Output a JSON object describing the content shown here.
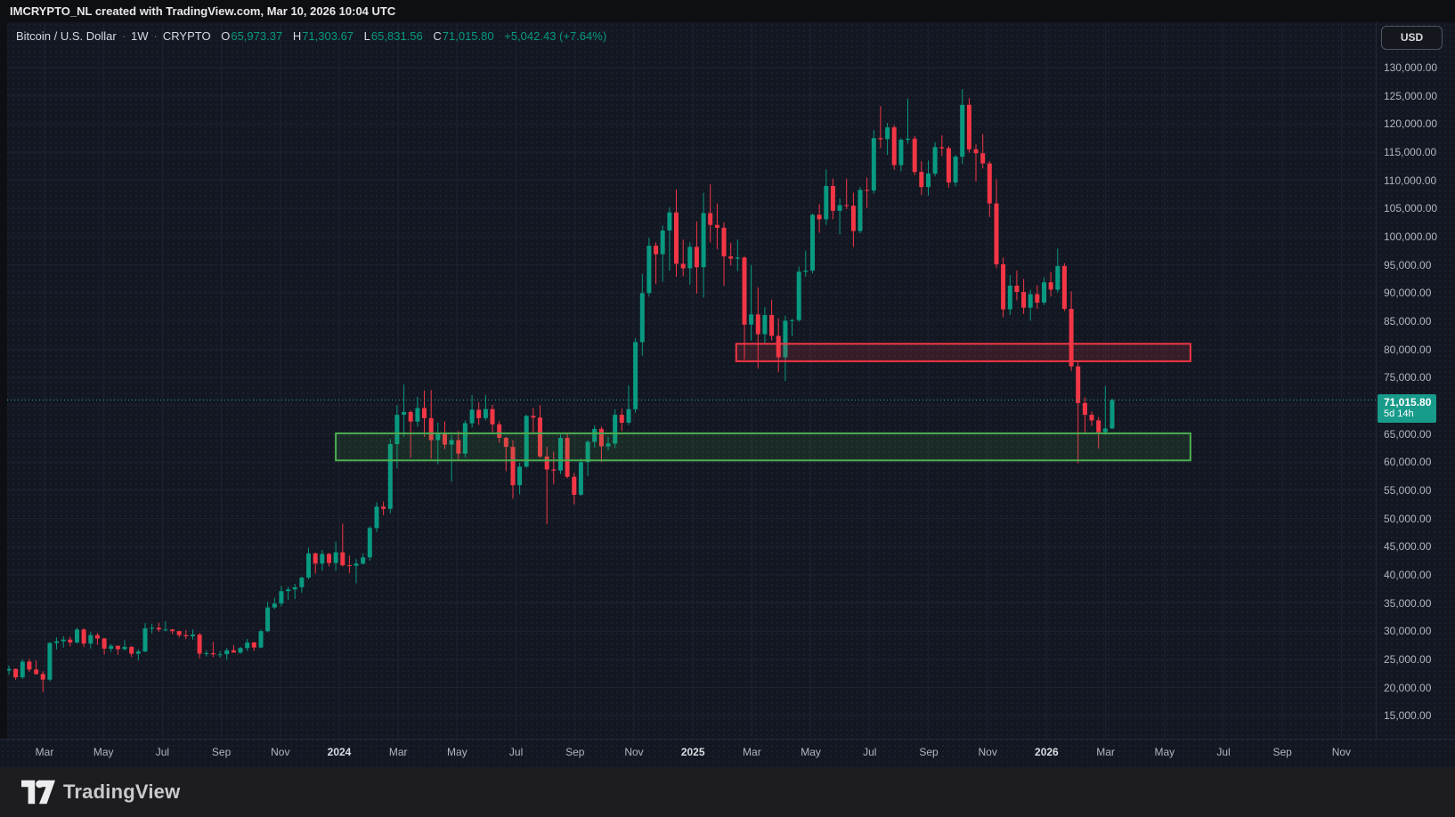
{
  "attribution": {
    "text": "IMCRYPTO_NL created with TradingView.com, Mar 10, 2026 10:04 UTC"
  },
  "header": {
    "symbol": "Bitcoin / U.S. Dollar",
    "separator": "·",
    "interval": "1W",
    "exchange": "CRYPTO",
    "ohlc": {
      "o_label": "O",
      "o": "65,973.37",
      "h_label": "H",
      "h": "71,303.67",
      "l_label": "L",
      "l": "65,831.56",
      "c_label": "C",
      "c": "71,015.80"
    },
    "change": "+5,042.43 (+7.64%)"
  },
  "price_axis": {
    "currency_button": "USD",
    "max": 130000,
    "min": 15000,
    "step": 5000,
    "labels": [
      "130,000.00",
      "125,000.00",
      "120,000.00",
      "115,000.00",
      "110,000.00",
      "105,000.00",
      "100,000.00",
      "95,000.00",
      "90,000.00",
      "85,000.00",
      "80,000.00",
      "75,000.00",
      "70,000.00",
      "65,000.00",
      "60,000.00",
      "55,000.00",
      "50,000.00",
      "45,000.00",
      "40,000.00",
      "35,000.00",
      "30,000.00",
      "25,000.00",
      "20,000.00",
      "15,000.00"
    ]
  },
  "time_axis": {
    "labels": [
      {
        "t": "Mar",
        "major": false
      },
      {
        "t": "May",
        "major": false
      },
      {
        "t": "Jul",
        "major": false
      },
      {
        "t": "Sep",
        "major": false
      },
      {
        "t": "Nov",
        "major": false
      },
      {
        "t": "2024",
        "major": true
      },
      {
        "t": "Mar",
        "major": false
      },
      {
        "t": "May",
        "major": false
      },
      {
        "t": "Jul",
        "major": false
      },
      {
        "t": "Sep",
        "major": false
      },
      {
        "t": "Nov",
        "major": false
      },
      {
        "t": "2025",
        "major": true
      },
      {
        "t": "Mar",
        "major": false
      },
      {
        "t": "May",
        "major": false
      },
      {
        "t": "Jul",
        "major": false
      },
      {
        "t": "Sep",
        "major": false
      },
      {
        "t": "Nov",
        "major": false
      },
      {
        "t": "2026",
        "major": true
      },
      {
        "t": "Mar",
        "major": false
      },
      {
        "t": "May",
        "major": false
      },
      {
        "t": "Jul",
        "major": false
      },
      {
        "t": "Sep",
        "major": false
      },
      {
        "t": "Nov",
        "major": false
      }
    ]
  },
  "current_price": {
    "value": "71,015.80",
    "price": 71015.8,
    "countdown": "5d 14h"
  },
  "footer": {
    "brand": "TradingView"
  },
  "colors": {
    "up": "#089981",
    "down": "#f23645",
    "bg": "#131722",
    "panel": "#0e0f12",
    "footerbg": "#1d1d20",
    "grid": "#1d2231",
    "axisline": "#242836",
    "axistext": "#b2b5be",
    "title": "#d6d8dd",
    "tagbg": "#189b8b",
    "dotted_line": "#26a69a",
    "zone_red_border": "#f23645",
    "zone_red_fill": "rgba(242,54,69,0.16)",
    "zone_green_border": "#4caf50",
    "zone_green_fill": "rgba(76,175,80,0.13)"
  },
  "zones": [
    {
      "name": "resistance-supply-zone",
      "top_price": 81000,
      "bottom_price": 77900,
      "start_index": 106.8,
      "end_index": 173.5,
      "border": "#f23645",
      "fill": "rgba(242,54,69,0.16)"
    },
    {
      "name": "support-demand-zone",
      "top_price": 65100,
      "bottom_price": 60300,
      "start_index": 48,
      "end_index": 173.5,
      "border": "#4caf50",
      "fill": "rgba(76,175,80,0.13)"
    }
  ],
  "chart_data": {
    "type": "candlestick",
    "title": "Bitcoin / U.S. Dollar",
    "symbol": "BTCUSD",
    "exchange": "CRYPTO",
    "interval": "1W",
    "unit": "USD",
    "start_date": "2023-01-30",
    "ylim": [
      15000,
      130000
    ],
    "grid": true,
    "current_close": 71015.8,
    "bar_countdown": "5d 14h",
    "candles_ohlc": [
      [
        23000,
        23900,
        22300,
        23300
      ],
      [
        23300,
        23400,
        21400,
        21800
      ],
      [
        21800,
        25000,
        21500,
        24600
      ],
      [
        24600,
        25100,
        22800,
        23200
      ],
      [
        23200,
        24800,
        22300,
        22400
      ],
      [
        22400,
        22900,
        19200,
        21400
      ],
      [
        21400,
        28100,
        21100,
        27900
      ],
      [
        27900,
        28900,
        26800,
        28200
      ],
      [
        28200,
        29100,
        27100,
        28500
      ],
      [
        28500,
        29000,
        27300,
        28000
      ],
      [
        28000,
        30600,
        27800,
        30300
      ],
      [
        30300,
        30500,
        27200,
        27800
      ],
      [
        27800,
        29900,
        26900,
        29300
      ],
      [
        29300,
        29700,
        27600,
        28700
      ],
      [
        28700,
        28800,
        25900,
        26900
      ],
      [
        26900,
        27700,
        26300,
        27400
      ],
      [
        27400,
        27500,
        25800,
        26800
      ],
      [
        26800,
        28400,
        26600,
        27200
      ],
      [
        27200,
        27400,
        25400,
        26000
      ],
      [
        26000,
        26800,
        24800,
        26400
      ],
      [
        26400,
        31400,
        26300,
        30500
      ],
      [
        30500,
        31300,
        29600,
        30600
      ],
      [
        30600,
        31500,
        29900,
        30300
      ],
      [
        30300,
        31800,
        30000,
        30300
      ],
      [
        30300,
        30400,
        29500,
        30000
      ],
      [
        30000,
        30100,
        28900,
        29300
      ],
      [
        29300,
        30200,
        28600,
        29100
      ],
      [
        29100,
        30300,
        28500,
        29400
      ],
      [
        29400,
        29700,
        25200,
        26000
      ],
      [
        26000,
        26600,
        25500,
        26100
      ],
      [
        26100,
        28100,
        25400,
        25900
      ],
      [
        25900,
        26500,
        25300,
        25900
      ],
      [
        25900,
        27000,
        24900,
        26600
      ],
      [
        26600,
        27500,
        26200,
        26200
      ],
      [
        26200,
        27200,
        26000,
        27000
      ],
      [
        27000,
        28600,
        26500,
        28000
      ],
      [
        28000,
        28100,
        26500,
        27100
      ],
      [
        27100,
        30300,
        27000,
        30000
      ],
      [
        30000,
        35200,
        29800,
        34200
      ],
      [
        34200,
        35900,
        33900,
        34900
      ],
      [
        34900,
        38000,
        34400,
        37100
      ],
      [
        37100,
        37900,
        35500,
        37400
      ],
      [
        37400,
        38400,
        35700,
        37800
      ],
      [
        37800,
        39700,
        36800,
        39500
      ],
      [
        39500,
        44800,
        39200,
        43800
      ],
      [
        43800,
        44000,
        40200,
        42000
      ],
      [
        42000,
        44400,
        40700,
        43700
      ],
      [
        43700,
        43900,
        41500,
        42100
      ],
      [
        42100,
        45900,
        40700,
        44000
      ],
      [
        44000,
        49100,
        41500,
        41700
      ],
      [
        41700,
        43400,
        40300,
        41600
      ],
      [
        41600,
        42800,
        38500,
        42000
      ],
      [
        42000,
        43800,
        41800,
        43100
      ],
      [
        43100,
        48600,
        42500,
        48300
      ],
      [
        48300,
        52900,
        47600,
        52100
      ],
      [
        52100,
        53000,
        50600,
        51700
      ],
      [
        51700,
        64100,
        50900,
        63200
      ],
      [
        63200,
        70100,
        58900,
        68400
      ],
      [
        68400,
        73800,
        64500,
        68900
      ],
      [
        68900,
        69200,
        60800,
        67200
      ],
      [
        67200,
        71600,
        66300,
        69600
      ],
      [
        69600,
        72700,
        64500,
        67800
      ],
      [
        67800,
        72800,
        60600,
        63900
      ],
      [
        63900,
        67000,
        59600,
        65000
      ],
      [
        65000,
        67200,
        62300,
        63100
      ],
      [
        63100,
        64800,
        56500,
        63900
      ],
      [
        63900,
        65500,
        60200,
        61500
      ],
      [
        61500,
        67400,
        60800,
        66900
      ],
      [
        66900,
        71900,
        66100,
        69300
      ],
      [
        69300,
        70600,
        66600,
        67800
      ],
      [
        67800,
        71900,
        67400,
        69400
      ],
      [
        69400,
        70200,
        65100,
        66700
      ],
      [
        66700,
        67300,
        63400,
        64300
      ],
      [
        64300,
        64500,
        58400,
        62700
      ],
      [
        62700,
        63900,
        53500,
        55900
      ],
      [
        55900,
        59900,
        54300,
        59200
      ],
      [
        59200,
        68400,
        59000,
        68200
      ],
      [
        68200,
        69600,
        65100,
        67900
      ],
      [
        67900,
        70100,
        60700,
        61000
      ],
      [
        61000,
        62700,
        49000,
        58700
      ],
      [
        58700,
        61800,
        56100,
        58500
      ],
      [
        58500,
        64900,
        57900,
        64300
      ],
      [
        64300,
        65000,
        57100,
        57400
      ],
      [
        57400,
        58100,
        52500,
        54200
      ],
      [
        54200,
        60600,
        54000,
        60000
      ],
      [
        60000,
        63900,
        57500,
        63600
      ],
      [
        63600,
        66500,
        62600,
        65900
      ],
      [
        65900,
        66300,
        60000,
        62800
      ],
      [
        62800,
        64500,
        62100,
        63300
      ],
      [
        63300,
        69400,
        62500,
        68400
      ],
      [
        68400,
        69500,
        65500,
        67000
      ],
      [
        67000,
        73600,
        66600,
        69400
      ],
      [
        69400,
        82000,
        68800,
        81300
      ],
      [
        81300,
        93400,
        78900,
        90000
      ],
      [
        90000,
        99800,
        89400,
        98400
      ],
      [
        98400,
        99000,
        91600,
        96900
      ],
      [
        96900,
        102000,
        92000,
        101100
      ],
      [
        101100,
        105200,
        94000,
        104300
      ],
      [
        104300,
        108400,
        92900,
        95200
      ],
      [
        95200,
        99500,
        93000,
        94400
      ],
      [
        94400,
        99000,
        91500,
        98200
      ],
      [
        98200,
        102700,
        89900,
        94600
      ],
      [
        94600,
        107800,
        89200,
        104200
      ],
      [
        104200,
        109300,
        99000,
        102100
      ],
      [
        102100,
        105900,
        97800,
        101600
      ],
      [
        101600,
        102500,
        91300,
        96500
      ],
      [
        96500,
        98900,
        94900,
        96100
      ],
      [
        96100,
        99500,
        93900,
        96300
      ],
      [
        96300,
        96500,
        78200,
        84400
      ],
      [
        84400,
        95000,
        81600,
        86200
      ],
      [
        86200,
        91000,
        76600,
        82700
      ],
      [
        82700,
        87500,
        81100,
        86100
      ],
      [
        86100,
        88800,
        81600,
        82400
      ],
      [
        82400,
        85500,
        76000,
        78600
      ],
      [
        78600,
        86000,
        74400,
        85100
      ],
      [
        85100,
        85400,
        82400,
        85200
      ],
      [
        85200,
        94700,
        84900,
        93800
      ],
      [
        93800,
        97500,
        92900,
        94000
      ],
      [
        94000,
        104100,
        93500,
        103900
      ],
      [
        103900,
        105800,
        100700,
        103100
      ],
      [
        103100,
        111900,
        102100,
        109000
      ],
      [
        109000,
        110300,
        103100,
        104600
      ],
      [
        104600,
        106800,
        100400,
        105600
      ],
      [
        105600,
        110300,
        104900,
        105500
      ],
      [
        105500,
        107800,
        98200,
        101000
      ],
      [
        101000,
        108800,
        100600,
        108300
      ],
      [
        108300,
        110500,
        105100,
        108200
      ],
      [
        108200,
        118900,
        107600,
        117500
      ],
      [
        117500,
        123200,
        115700,
        117300
      ],
      [
        117300,
        120200,
        114500,
        119400
      ],
      [
        119400,
        119800,
        111900,
        112700
      ],
      [
        112700,
        117500,
        111600,
        117200
      ],
      [
        117200,
        124500,
        116500,
        117400
      ],
      [
        117400,
        117900,
        110900,
        111500
      ],
      [
        111500,
        113400,
        107400,
        108800
      ],
      [
        108800,
        113500,
        107300,
        111200
      ],
      [
        111200,
        116800,
        110700,
        115900
      ],
      [
        115900,
        118000,
        114300,
        115700
      ],
      [
        115700,
        116100,
        108700,
        109600
      ],
      [
        109600,
        114500,
        108900,
        114200
      ],
      [
        114200,
        126200,
        112900,
        123400
      ],
      [
        123400,
        124600,
        114900,
        115500
      ],
      [
        115500,
        116400,
        109800,
        114800
      ],
      [
        114800,
        118200,
        112100,
        113000
      ],
      [
        113000,
        113400,
        103500,
        105900
      ],
      [
        105900,
        110200,
        94400,
        95100
      ],
      [
        95100,
        96300,
        85700,
        87100
      ],
      [
        87100,
        93200,
        86100,
        91300
      ],
      [
        91300,
        94000,
        88700,
        90200
      ],
      [
        90200,
        92500,
        86300,
        87400
      ],
      [
        87400,
        90600,
        85100,
        89800
      ],
      [
        89800,
        91400,
        87200,
        88300
      ],
      [
        88300,
        92800,
        87900,
        91900
      ],
      [
        91900,
        93700,
        89400,
        90600
      ],
      [
        90600,
        97900,
        90100,
        94800
      ],
      [
        94800,
        95300,
        86800,
        87200
      ],
      [
        87200,
        90300,
        76200,
        77000
      ],
      [
        77000,
        77800,
        59800,
        70500
      ],
      [
        70500,
        71500,
        65000,
        68400
      ],
      [
        68400,
        69000,
        66400,
        67400
      ],
      [
        67400,
        68000,
        62400,
        65300
      ],
      [
        65300,
        73500,
        64800,
        65973
      ],
      [
        65973.37,
        71303.67,
        65831.56,
        71015.8
      ]
    ]
  }
}
